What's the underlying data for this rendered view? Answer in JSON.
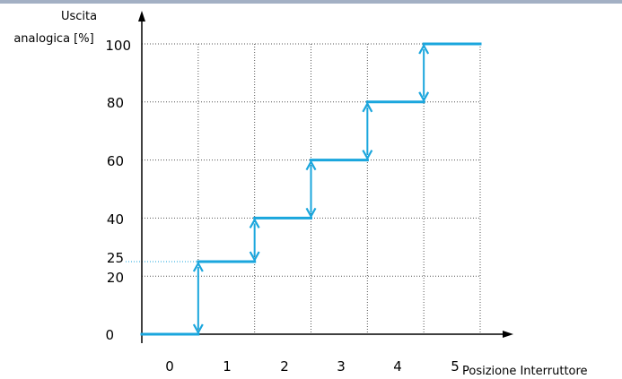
{
  "chart_data": {
    "type": "line",
    "ylabel_lines": [
      "Uscita",
      "analogica [%]"
    ],
    "xlabel": "Posizione Interruttore",
    "x_ticks": [
      "0",
      "1",
      "2",
      "3",
      "4",
      "5"
    ],
    "y_ticks": [
      "0",
      "20",
      "40",
      "60",
      "80",
      "100"
    ],
    "highlight_y_tick": "25",
    "xlim": [
      -0.5,
      5.5
    ],
    "ylim": [
      0,
      100
    ],
    "grid": true,
    "series": [
      {
        "steps": [
          {
            "x_from": -0.5,
            "x_to": 0.5,
            "y": 0
          },
          {
            "x_from": 0.5,
            "x_to": 1.5,
            "y": 25
          },
          {
            "x_from": 1.5,
            "x_to": 2.5,
            "y": 40
          },
          {
            "x_from": 2.5,
            "x_to": 3.5,
            "y": 60
          },
          {
            "x_from": 3.5,
            "x_to": 4.5,
            "y": 80
          },
          {
            "x_from": 4.5,
            "x_to": 5.5,
            "y": 100
          }
        ]
      }
    ],
    "double_arrows": [
      {
        "x": 0.5,
        "y_from": 0,
        "y_to": 25
      },
      {
        "x": 1.5,
        "y_from": 25,
        "y_to": 40
      },
      {
        "x": 2.5,
        "y_from": 40,
        "y_to": 60
      },
      {
        "x": 3.5,
        "y_from": 60,
        "y_to": 80
      },
      {
        "x": 4.5,
        "y_from": 80,
        "y_to": 100
      }
    ],
    "colors": {
      "line": "#1aa6dd",
      "highlight": "#1aa6dd",
      "grid": "#555555",
      "axis": "#000000"
    }
  }
}
